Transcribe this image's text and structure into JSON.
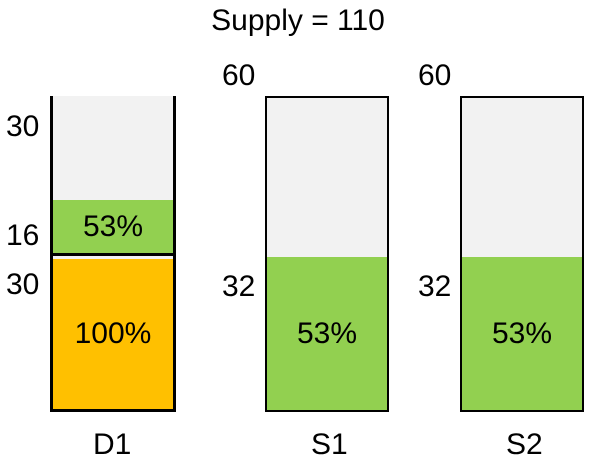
{
  "title": "Supply = 110",
  "d1": {
    "label": "D1",
    "top_cap": "30",
    "upper_cap": "16",
    "lower_cap": "30",
    "upper_pct_text": "53%",
    "lower_pct_text": "100%",
    "upper_fill_color": "#92d050",
    "lower_fill_color": "#ffc000"
  },
  "s1": {
    "label": "S1",
    "cap": "60",
    "level": "32",
    "pct_text": "53%",
    "fill_color": "#92d050"
  },
  "s2": {
    "label": "S2",
    "cap": "60",
    "level": "32",
    "pct_text": "53%",
    "fill_color": "#92d050"
  },
  "colors": {
    "empty": "#f2f2f2",
    "border": "#000000"
  }
}
